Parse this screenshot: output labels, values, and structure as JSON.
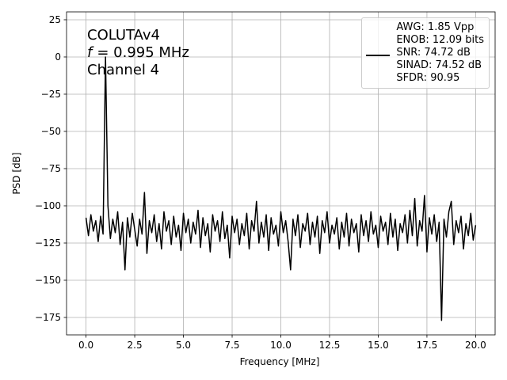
{
  "chart_data": {
    "type": "line",
    "annotation_lines": [
      "COLUTAv4",
      [
        "f",
        "= 0.995 MHz"
      ],
      "Channel 4"
    ],
    "xlabel": "Frequency [MHz]",
    "ylabel": "PSD [dB]",
    "x": [
      0,
      0.125,
      0.25,
      0.375,
      0.5,
      0.625,
      0.75,
      0.875,
      1,
      1.125,
      1.25,
      1.375,
      1.5,
      1.625,
      1.75,
      1.875,
      2,
      2.125,
      2.25,
      2.375,
      2.5,
      2.625,
      2.75,
      2.875,
      3,
      3.125,
      3.25,
      3.375,
      3.5,
      3.625,
      3.75,
      3.875,
      4,
      4.125,
      4.25,
      4.375,
      4.5,
      4.625,
      4.75,
      4.875,
      5,
      5.125,
      5.25,
      5.375,
      5.5,
      5.625,
      5.75,
      5.875,
      6,
      6.125,
      6.25,
      6.375,
      6.5,
      6.625,
      6.75,
      6.875,
      7,
      7.125,
      7.25,
      7.375,
      7.5,
      7.625,
      7.75,
      7.875,
      8,
      8.125,
      8.25,
      8.375,
      8.5,
      8.625,
      8.75,
      8.875,
      9,
      9.125,
      9.25,
      9.375,
      9.5,
      9.625,
      9.75,
      9.875,
      10,
      10.125,
      10.25,
      10.375,
      10.5,
      10.625,
      10.75,
      10.875,
      11,
      11.125,
      11.25,
      11.375,
      11.5,
      11.625,
      11.75,
      11.875,
      12,
      12.125,
      12.25,
      12.375,
      12.5,
      12.625,
      12.75,
      12.875,
      13,
      13.125,
      13.25,
      13.375,
      13.5,
      13.625,
      13.75,
      13.875,
      14,
      14.125,
      14.25,
      14.375,
      14.5,
      14.625,
      14.75,
      14.875,
      15,
      15.125,
      15.25,
      15.375,
      15.5,
      15.625,
      15.75,
      15.875,
      16,
      16.125,
      16.25,
      16.375,
      16.5,
      16.625,
      16.75,
      16.875,
      17,
      17.125,
      17.25,
      17.375,
      17.5,
      17.625,
      17.75,
      17.875,
      18,
      18.125,
      18.25,
      18.375,
      18.5,
      18.625,
      18.75,
      18.875,
      19,
      19.125,
      19.25,
      19.375,
      19.5,
      19.625,
      19.75,
      19.875,
      20
    ],
    "series": [
      {
        "name": "AWG: 1.85 Vpp\nENOB: 12.09 bits\nSNR: 74.72 dB\nSINAD: 74.52 dB\nSFDR: 90.95",
        "color": "#000000",
        "values": [
          -108,
          -120,
          -106,
          -117,
          -110,
          -124,
          -107,
          -119,
          0,
          -100,
          -122,
          -109,
          -118,
          -104,
          -126,
          -111,
          -143,
          -108,
          -121,
          -105,
          -116,
          -127,
          -109,
          -119,
          -91,
          -132,
          -110,
          -118,
          -106,
          -124,
          -112,
          -129,
          -104,
          -117,
          -110,
          -126,
          -107,
          -121,
          -113,
          -130,
          -105,
          -118,
          -109,
          -125,
          -111,
          -119,
          -103,
          -128,
          -108,
          -120,
          -112,
          -131,
          -106,
          -117,
          -110,
          -124,
          -104,
          -122,
          -113,
          -135,
          -107,
          -118,
          -109,
          -126,
          -112,
          -120,
          -105,
          -129,
          -110,
          -117,
          -97,
          -125,
          -111,
          -121,
          -106,
          -130,
          -108,
          -119,
          -113,
          -127,
          -104,
          -118,
          -110,
          -124,
          -143,
          -109,
          -120,
          -106,
          -128,
          -112,
          -117,
          -105,
          -126,
          -111,
          -121,
          -107,
          -132,
          -110,
          -118,
          -104,
          -125,
          -113,
          -119,
          -108,
          -129,
          -111,
          -121,
          -105,
          -127,
          -109,
          -118,
          -112,
          -131,
          -106,
          -120,
          -110,
          -124,
          -104,
          -119,
          -113,
          -128,
          -107,
          -117,
          -111,
          -126,
          -105,
          -121,
          -109,
          -130,
          -112,
          -118,
          -106,
          -125,
          -103,
          -120,
          -95,
          -127,
          -110,
          -117,
          -93,
          -131,
          -108,
          -119,
          -106,
          -124,
          -111,
          -177,
          -109,
          -121,
          -104,
          -97,
          -126,
          -110,
          -118,
          -107,
          -129,
          -112,
          -120,
          -105,
          -123,
          -113
        ]
      }
    ],
    "xlim": [
      -1,
      21
    ],
    "xticks": [
      {
        "value": 0,
        "label": "0.0"
      },
      2.5,
      {
        "value": 5,
        "label": "5.0"
      },
      7.5,
      {
        "value": 10,
        "label": "10.0"
      },
      12.5,
      {
        "value": 15,
        "label": "15.0"
      },
      17.5,
      {
        "value": 20,
        "label": "20.0"
      }
    ],
    "ylim": [
      -186.7,
      30.3
    ],
    "yticks": [
      {
        "value": -175,
        "label": "−175"
      },
      {
        "value": -150,
        "label": "−150"
      },
      {
        "value": -125,
        "label": "−125"
      },
      {
        "value": -100,
        "label": "−100"
      },
      {
        "value": -75,
        "label": "−75"
      },
      {
        "value": -50,
        "label": "−50"
      },
      {
        "value": -25,
        "label": "−25"
      },
      0,
      25
    ],
    "grid": true,
    "legend": "upper right"
  }
}
